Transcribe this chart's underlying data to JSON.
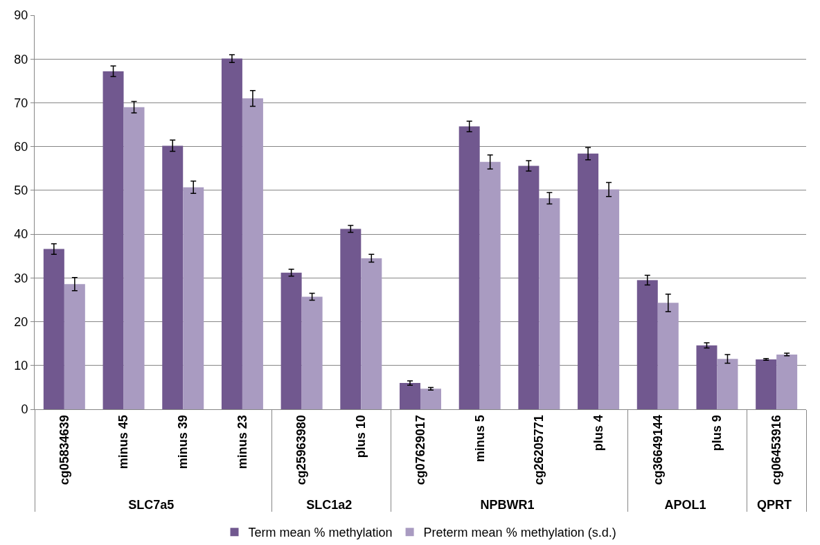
{
  "chart_data": {
    "type": "bar",
    "categories": [
      "cg05834639",
      "minus 45",
      "minus 39",
      "minus 23",
      "cg25963980",
      "plus 10",
      "cg07629017",
      "minus 5",
      "cg26205771",
      "plus 4",
      "cg36649144",
      "plus 9",
      "cg06453916"
    ],
    "series": [
      {
        "name": "Term mean % methylation",
        "color": "#71588f",
        "values": [
          36.6,
          77.2,
          60.2,
          80.1,
          31.2,
          41.2,
          6.0,
          64.6,
          55.6,
          58.4,
          29.5,
          14.6,
          11.4
        ],
        "errors": [
          1.2,
          1.2,
          1.3,
          0.9,
          0.8,
          0.8,
          0.5,
          1.2,
          1.2,
          1.4,
          1.1,
          0.6,
          0.2
        ]
      },
      {
        "name": "Preterm mean % methylation (s.d.)",
        "color": "#a99bc1",
        "values": [
          28.6,
          69.0,
          50.7,
          71.0,
          25.7,
          34.5,
          4.7,
          56.5,
          48.2,
          50.2,
          24.3,
          11.5,
          12.5
        ],
        "errors": [
          1.5,
          1.3,
          1.4,
          1.8,
          0.8,
          0.9,
          0.3,
          1.6,
          1.3,
          1.6,
          2.0,
          1.0,
          0.3
        ]
      }
    ],
    "annotations": [
      "SLC7a5",
      "SLC1a2",
      "NPBWR1",
      "APOL1",
      "QPRT"
    ],
    "ylim": [
      0,
      90
    ],
    "yticks": [
      0,
      10,
      20,
      30,
      40,
      50,
      60,
      70,
      80,
      90
    ],
    "grid": "y",
    "legend": "bottom"
  }
}
